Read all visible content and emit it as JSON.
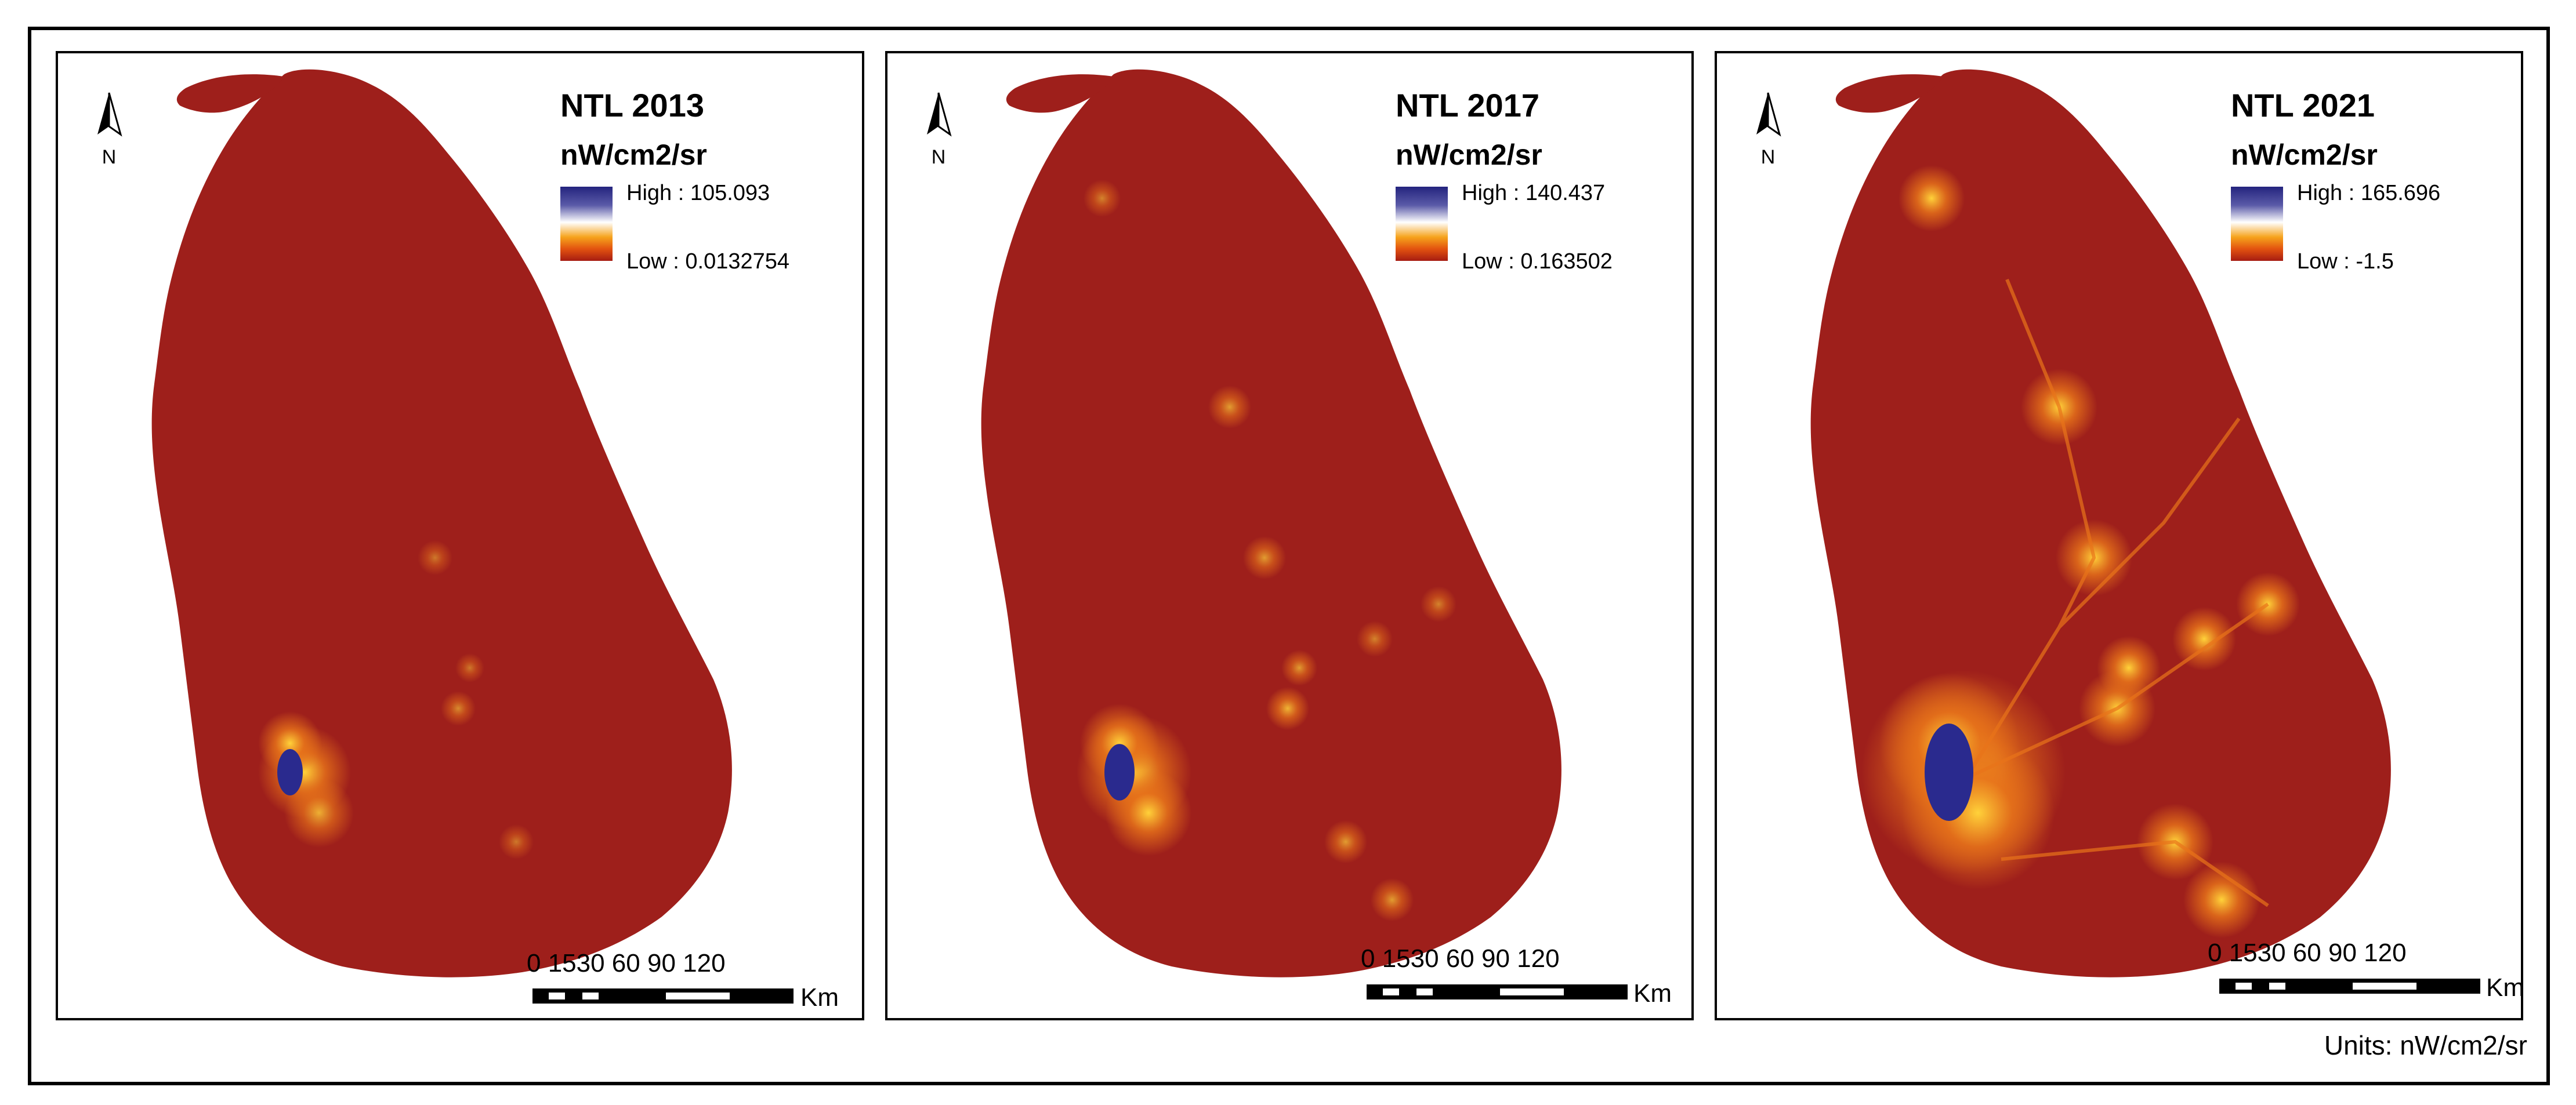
{
  "figure": {
    "units_caption": "Units: nW/cm2/sr",
    "colors": {
      "land_base": "#9e1f1b",
      "glow_mid": "#e8741a",
      "glow_bright": "#ffd23a",
      "urban_core": "#2a2a8e",
      "high_color": "#24247e",
      "low_color": "#a61c12",
      "water": "#ffffff"
    }
  },
  "panels": [
    {
      "title": "NTL 2013",
      "unit": "nW/cm2/sr",
      "high_label": "High : 105.093",
      "low_label": "Low : 0.0132754",
      "north_label": "N",
      "scale_ticks": "0 1530  60  90  120",
      "scale_unit": "Km",
      "intensity": 1
    },
    {
      "title": "NTL 2017",
      "unit": "nW/cm2/sr",
      "high_label": "High : 140.437",
      "low_label": "Low : 0.163502",
      "north_label": "N",
      "scale_ticks": "0 1530  60  90  120",
      "scale_unit": "Km",
      "intensity": 1.4
    },
    {
      "title": "NTL 2021",
      "unit": "nW/cm2/sr",
      "high_label": "High : 165.696",
      "low_label": "Low : -1.5",
      "north_label": "N",
      "scale_ticks": "0 1530  60  90  120",
      "scale_unit": "Km",
      "intensity": 3
    }
  ]
}
